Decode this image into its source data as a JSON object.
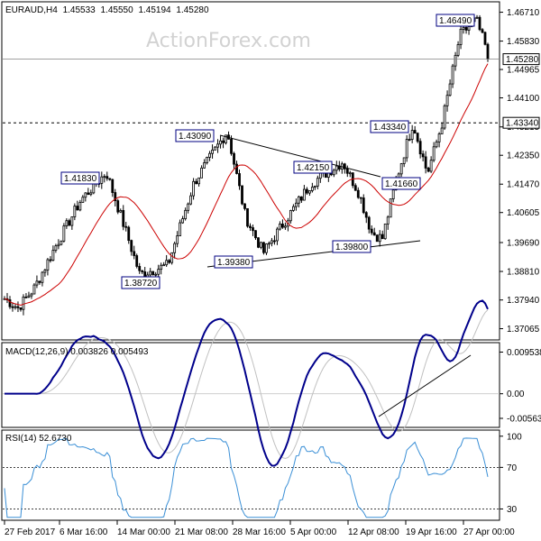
{
  "chart_data": [
    {
      "type": "candlestick",
      "header": {
        "symbol": "EURAUD,H4",
        "open": "1.45533",
        "high": "1.45550",
        "low": "1.45194",
        "close": "1.45280"
      },
      "watermark": "ActionForex.com",
      "ylim": [
        1.3675,
        1.47
      ],
      "y_ticks": [
        "1.46710",
        "1.45830",
        "1.44965",
        "1.44100",
        "1.43215",
        "1.42350",
        "1.41470",
        "1.40605",
        "1.39690",
        "1.38810",
        "1.37940",
        "1.37065"
      ],
      "x_ticks": [
        "27 Feb 2017",
        "6 Mar 16:00",
        "14 Mar 00:00",
        "21 Mar 08:00",
        "28 Mar 16:00",
        "5 Apr 00:00",
        "12 Apr 08:00",
        "19 Apr 16:00",
        "27 Apr 00:00"
      ],
      "current_price": "1.45280",
      "horizontal_level": "1.43340",
      "price_labels": [
        "1.41830",
        "1.38720",
        "1.43090",
        "1.39380",
        "1.42150",
        "1.39800",
        "1.43340",
        "1.41660",
        "1.46490"
      ],
      "grid": false,
      "moving_average_color": "#cc0000",
      "candle_color": "#000000"
    },
    {
      "type": "line",
      "title": "MACD(12,26,9) 0.003826 0.005493",
      "ylim": [
        -0.0075,
        0.0115
      ],
      "y_ticks": [
        "0.009538",
        "0.00",
        "-0.005637"
      ],
      "macd_color": "#00008b",
      "signal_color": "#c0c0c0"
    },
    {
      "type": "line",
      "title": "RSI(14) 52.6730",
      "ylim": [
        20,
        105
      ],
      "y_ticks": [
        "100",
        "70",
        "30"
      ],
      "levels": [
        70,
        30
      ],
      "line_color": "#3a8fd6"
    }
  ]
}
